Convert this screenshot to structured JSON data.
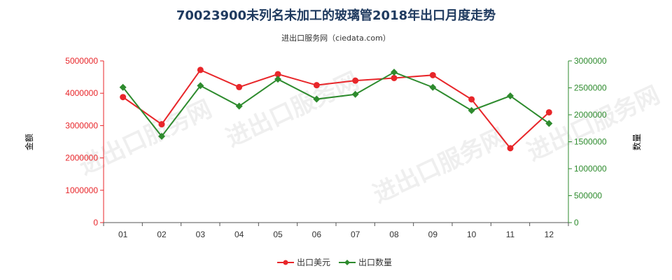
{
  "chart_data": {
    "type": "line",
    "title": "70023900未列名未加工的玻璃管2018年出口月度走势",
    "subtitle": "进出口服务网（ciedata.com）",
    "categories": [
      "01",
      "02",
      "03",
      "04",
      "05",
      "06",
      "07",
      "08",
      "09",
      "10",
      "11",
      "12"
    ],
    "y_left": {
      "label": "金额",
      "ylim": [
        0,
        5000000
      ],
      "ticks": [
        "0",
        "1000000",
        "2000000",
        "3000000",
        "4000000",
        "5000000"
      ],
      "color": "#e8262a"
    },
    "y_right": {
      "label": "数量",
      "ylim": [
        0,
        3000000
      ],
      "ticks": [
        "0",
        "500000",
        "1000000",
        "1500000",
        "2000000",
        "2500000",
        "3000000"
      ],
      "color": "#2e8b2e"
    },
    "series": [
      {
        "name": "出口美元",
        "axis": "left",
        "color": "#e8262a",
        "values": [
          3880000,
          3040000,
          4720000,
          4190000,
          4590000,
          4250000,
          4390000,
          4470000,
          4560000,
          3810000,
          2300000,
          3410000
        ]
      },
      {
        "name": "出口数量",
        "axis": "right",
        "color": "#2e8b2e",
        "values": [
          2510000,
          1600000,
          2540000,
          2160000,
          2660000,
          2290000,
          2380000,
          2790000,
          2510000,
          2080000,
          2350000,
          1840000
        ]
      }
    ],
    "legend_position": "bottom-center",
    "grid": false
  },
  "watermark_text": "进出口服务网"
}
